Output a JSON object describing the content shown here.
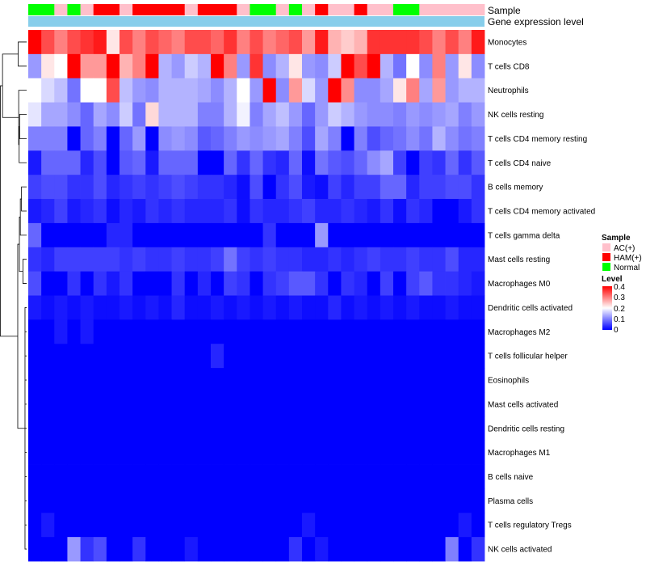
{
  "chart_data": {
    "type": "heatmap",
    "title": "",
    "annotation_labels": [
      "Sample",
      "Gene expression level"
    ],
    "sample_categories": [
      "AC(+)",
      "HAM(+)",
      "Normal"
    ],
    "sample_colors": {
      "AC(+)": "#FFC0CB",
      "HAM(+)": "#FF0000",
      "Normal": "#00FF00"
    },
    "expression_bar_color": "#87CEEB",
    "samples": [
      "Normal",
      "Normal",
      "AC(+)",
      "Normal",
      "AC(+)",
      "HAM(+)",
      "HAM(+)",
      "AC(+)",
      "HAM(+)",
      "HAM(+)",
      "HAM(+)",
      "HAM(+)",
      "AC(+)",
      "HAM(+)",
      "HAM(+)",
      "HAM(+)",
      "AC(+)",
      "Normal",
      "Normal",
      "AC(+)",
      "Normal",
      "AC(+)",
      "HAM(+)",
      "AC(+)",
      "AC(+)",
      "HAM(+)",
      "AC(+)",
      "AC(+)",
      "Normal",
      "Normal",
      "AC(+)",
      "AC(+)",
      "AC(+)",
      "AC(+)",
      "AC(+)"
    ],
    "rows": [
      "Monocytes",
      "T cells CD8",
      "Neutrophils",
      "NK cells resting",
      "T cells CD4 memory resting",
      "T cells CD4 naive",
      "B cells memory",
      "T cells CD4 memory activated",
      "T cells gamma delta",
      "Mast cells resting",
      "Macrophages M0",
      "Dendritic cells activated",
      "Macrophages M2",
      "T cells follicular helper",
      "Eosinophils",
      "Mast cells activated",
      "Dendritic cells resting",
      "Macrophages M1",
      "B cells naive",
      "Plasma cells",
      "T cells regulatory  Tregs",
      "NK cells activated"
    ],
    "values": [
      [
        0.4,
        0.34,
        0.3,
        0.34,
        0.36,
        0.38,
        0.22,
        0.34,
        0.3,
        0.34,
        0.32,
        0.3,
        0.34,
        0.34,
        0.32,
        0.36,
        0.3,
        0.34,
        0.3,
        0.32,
        0.34,
        0.28,
        0.38,
        0.26,
        0.24,
        0.26,
        0.36,
        0.36,
        0.36,
        0.36,
        0.34,
        0.3,
        0.34,
        0.3,
        0.38
      ],
      [
        0.12,
        0.22,
        0.2,
        0.4,
        0.28,
        0.28,
        0.4,
        0.26,
        0.3,
        0.4,
        0.14,
        0.12,
        0.16,
        0.14,
        0.4,
        0.3,
        0.12,
        0.36,
        0.11,
        0.14,
        0.22,
        0.12,
        0.11,
        0.16,
        0.4,
        0.34,
        0.4,
        0.14,
        0.09,
        0.2,
        0.11,
        0.3,
        0.12,
        0.22,
        0.11
      ],
      [
        0.2,
        0.17,
        0.15,
        0.09,
        0.2,
        0.2,
        0.34,
        0.15,
        0.12,
        0.11,
        0.14,
        0.14,
        0.14,
        0.13,
        0.11,
        0.14,
        0.2,
        0.12,
        0.4,
        0.11,
        0.28,
        0.17,
        0.12,
        0.4,
        0.29,
        0.11,
        0.11,
        0.13,
        0.22,
        0.3,
        0.13,
        0.28,
        0.12,
        0.14,
        0.14
      ],
      [
        0.18,
        0.13,
        0.13,
        0.11,
        0.08,
        0.13,
        0.11,
        0.16,
        0.09,
        0.23,
        0.14,
        0.14,
        0.14,
        0.1,
        0.1,
        0.14,
        0.19,
        0.1,
        0.13,
        0.15,
        0.12,
        0.08,
        0.12,
        0.16,
        0.14,
        0.12,
        0.11,
        0.11,
        0.1,
        0.12,
        0.11,
        0.12,
        0.13,
        0.1,
        0.12
      ],
      [
        0.1,
        0.1,
        0.1,
        0.0,
        0.08,
        0.1,
        0.0,
        0.08,
        0.12,
        0.0,
        0.11,
        0.12,
        0.11,
        0.07,
        0.08,
        0.1,
        0.12,
        0.11,
        0.12,
        0.13,
        0.1,
        0.06,
        0.13,
        0.1,
        0.0,
        0.1,
        0.06,
        0.08,
        0.09,
        0.11,
        0.09,
        0.14,
        0.11,
        0.09,
        0.1
      ],
      [
        0.02,
        0.08,
        0.08,
        0.08,
        0.03,
        0.06,
        0.0,
        0.07,
        0.08,
        0.02,
        0.08,
        0.08,
        0.08,
        0.0,
        0.0,
        0.08,
        0.04,
        0.08,
        0.04,
        0.03,
        0.08,
        0.01,
        0.09,
        0.07,
        0.06,
        0.08,
        0.11,
        0.13,
        0.05,
        0.0,
        0.05,
        0.04,
        0.08,
        0.04,
        0.07
      ],
      [
        0.05,
        0.06,
        0.06,
        0.04,
        0.04,
        0.06,
        0.03,
        0.04,
        0.05,
        0.04,
        0.05,
        0.06,
        0.05,
        0.04,
        0.04,
        0.03,
        0.01,
        0.06,
        0.0,
        0.04,
        0.06,
        0.02,
        0.01,
        0.05,
        0.03,
        0.05,
        0.05,
        0.08,
        0.08,
        0.03,
        0.05,
        0.05,
        0.06,
        0.06,
        0.04
      ],
      [
        0.02,
        0.03,
        0.05,
        0.02,
        0.03,
        0.04,
        0.01,
        0.03,
        0.02,
        0.04,
        0.03,
        0.04,
        0.03,
        0.03,
        0.03,
        0.04,
        0.01,
        0.04,
        0.03,
        0.03,
        0.04,
        0.05,
        0.03,
        0.03,
        0.04,
        0.03,
        0.02,
        0.04,
        0.01,
        0.04,
        0.03,
        0.0,
        0.0,
        0.02,
        0.04
      ],
      [
        0.08,
        0.0,
        0.0,
        0.0,
        0.0,
        0.0,
        0.03,
        0.03,
        0.0,
        0.0,
        0.0,
        0.0,
        0.0,
        0.0,
        0.0,
        0.0,
        0.0,
        0.0,
        0.04,
        0.0,
        0.0,
        0.0,
        0.12,
        0.0,
        0.0,
        0.0,
        0.0,
        0.0,
        0.0,
        0.0,
        0.0,
        0.0,
        0.0,
        0.0,
        0.0
      ],
      [
        0.04,
        0.03,
        0.05,
        0.05,
        0.05,
        0.05,
        0.05,
        0.04,
        0.05,
        0.04,
        0.04,
        0.05,
        0.04,
        0.04,
        0.05,
        0.09,
        0.05,
        0.04,
        0.05,
        0.04,
        0.04,
        0.03,
        0.03,
        0.04,
        0.03,
        0.04,
        0.05,
        0.04,
        0.04,
        0.05,
        0.04,
        0.04,
        0.06,
        0.03,
        0.03
      ],
      [
        0.06,
        0.0,
        0.0,
        0.04,
        0.0,
        0.04,
        0.02,
        0.04,
        0.0,
        0.0,
        0.0,
        0.04,
        0.0,
        0.03,
        0.0,
        0.05,
        0.04,
        0.0,
        0.04,
        0.05,
        0.07,
        0.07,
        0.04,
        0.0,
        0.04,
        0.03,
        0.0,
        0.05,
        0.0,
        0.05,
        0.07,
        0.04,
        0.04,
        0.03,
        0.02
      ],
      [
        0.02,
        0.01,
        0.02,
        0.01,
        0.02,
        0.01,
        0.01,
        0.02,
        0.01,
        0.02,
        0.01,
        0.03,
        0.01,
        0.01,
        0.02,
        0.01,
        0.02,
        0.01,
        0.02,
        0.01,
        0.02,
        0.01,
        0.01,
        0.03,
        0.01,
        0.02,
        0.01,
        0.02,
        0.01,
        0.02,
        0.01,
        0.01,
        0.02,
        0.01,
        0.01
      ],
      [
        0.0,
        0.0,
        0.02,
        0.0,
        0.02,
        0.0,
        0.0,
        0.0,
        0.0,
        0.0,
        0.0,
        0.0,
        0.0,
        0.0,
        0.0,
        0.0,
        0.0,
        0.0,
        0.0,
        0.0,
        0.0,
        0.0,
        0.0,
        0.0,
        0.0,
        0.0,
        0.0,
        0.0,
        0.0,
        0.0,
        0.0,
        0.0,
        0.0,
        0.0,
        0.0
      ],
      [
        0.0,
        0.0,
        0.0,
        0.0,
        0.0,
        0.0,
        0.0,
        0.0,
        0.0,
        0.0,
        0.0,
        0.0,
        0.0,
        0.0,
        0.03,
        0.0,
        0.0,
        0.0,
        0.0,
        0.0,
        0.0,
        0.0,
        0.0,
        0.0,
        0.0,
        0.0,
        0.0,
        0.0,
        0.0,
        0.0,
        0.0,
        0.0,
        0.0,
        0.0,
        0.0
      ],
      [
        0,
        0,
        0,
        0,
        0,
        0,
        0,
        0,
        0,
        0,
        0,
        0,
        0,
        0,
        0,
        0,
        0,
        0,
        0,
        0,
        0,
        0,
        0,
        0,
        0,
        0,
        0,
        0,
        0,
        0,
        0,
        0,
        0,
        0,
        0
      ],
      [
        0,
        0,
        0,
        0,
        0,
        0,
        0,
        0,
        0,
        0,
        0,
        0,
        0,
        0,
        0,
        0,
        0,
        0,
        0,
        0,
        0,
        0,
        0,
        0,
        0,
        0,
        0,
        0,
        0,
        0,
        0,
        0,
        0,
        0,
        0
      ],
      [
        0,
        0,
        0,
        0,
        0,
        0,
        0,
        0,
        0,
        0,
        0,
        0,
        0,
        0,
        0,
        0,
        0,
        0,
        0,
        0,
        0,
        0,
        0,
        0,
        0,
        0,
        0,
        0,
        0,
        0,
        0,
        0,
        0,
        0,
        0
      ],
      [
        0,
        0,
        0,
        0,
        0,
        0,
        0,
        0,
        0,
        0,
        0,
        0,
        0,
        0,
        0,
        0,
        0,
        0,
        0,
        0,
        0,
        0,
        0,
        0,
        0,
        0,
        0,
        0,
        0,
        0,
        0,
        0,
        0,
        0,
        0
      ],
      [
        0,
        0,
        0,
        0,
        0,
        0,
        0,
        0,
        0,
        0,
        0,
        0,
        0,
        0,
        0,
        0,
        0,
        0,
        0,
        0,
        0,
        0,
        0,
        0,
        0,
        0,
        0,
        0,
        0,
        0,
        0,
        0,
        0,
        0,
        0
      ],
      [
        0,
        0,
        0,
        0,
        0,
        0,
        0,
        0,
        0,
        0,
        0,
        0,
        0,
        0,
        0,
        0,
        0,
        0,
        0,
        0,
        0,
        0,
        0,
        0,
        0,
        0,
        0,
        0,
        0,
        0,
        0,
        0,
        0,
        0,
        0
      ],
      [
        0.0,
        0.02,
        0.0,
        0.0,
        0.0,
        0.0,
        0.0,
        0.0,
        0.0,
        0.0,
        0.0,
        0.0,
        0.0,
        0.0,
        0.0,
        0.0,
        0.0,
        0.0,
        0.0,
        0.0,
        0.0,
        0.02,
        0.0,
        0.0,
        0.0,
        0.0,
        0.0,
        0.0,
        0.0,
        0.0,
        0.0,
        0.0,
        0.0,
        0.02,
        0.0
      ],
      [
        0.0,
        0.0,
        0.0,
        0.12,
        0.04,
        0.06,
        0.0,
        0.0,
        0.04,
        0.0,
        0.0,
        0.0,
        0.02,
        0.0,
        0.0,
        0.0,
        0.0,
        0.0,
        0.0,
        0.0,
        0.04,
        0.0,
        0.02,
        0.0,
        0.0,
        0.0,
        0.0,
        0.0,
        0.0,
        0.0,
        0.0,
        0.0,
        0.1,
        0.0,
        0.04
      ]
    ],
    "color_scale": {
      "min": 0,
      "mid": 0.2,
      "max": 0.4,
      "low": "#0000FF",
      "mid_color": "#FFFFFF",
      "high": "#FF0000"
    },
    "legend": {
      "sample_title": "Sample",
      "level_title": "Level",
      "level_ticks": [
        "0.4",
        "0.3",
        "0.2",
        "0.1",
        "0"
      ],
      "placement": "right"
    }
  }
}
